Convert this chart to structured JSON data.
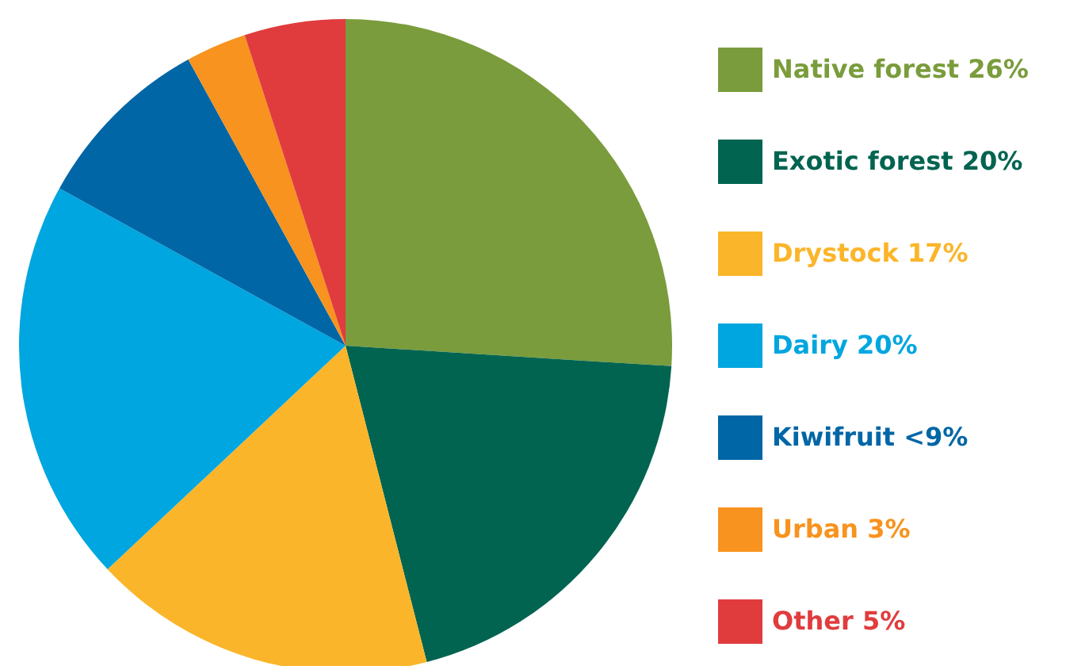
{
  "chart_data": {
    "type": "pie",
    "categories": [
      "Native forest",
      "Exotic forest",
      "Drystock",
      "Dairy",
      "Kiwifruit",
      "Urban",
      "Other"
    ],
    "values": [
      26,
      20,
      17,
      20,
      9,
      3,
      5
    ],
    "value_labels": [
      "26%",
      "20%",
      "17%",
      "20%",
      "<9%",
      "3%",
      "5%"
    ],
    "colors": [
      "#7a9c3c",
      "#006450",
      "#fbb52a",
      "#00a6df",
      "#0066a6",
      "#f7931e",
      "#e03c3e"
    ],
    "legend": "right"
  }
}
